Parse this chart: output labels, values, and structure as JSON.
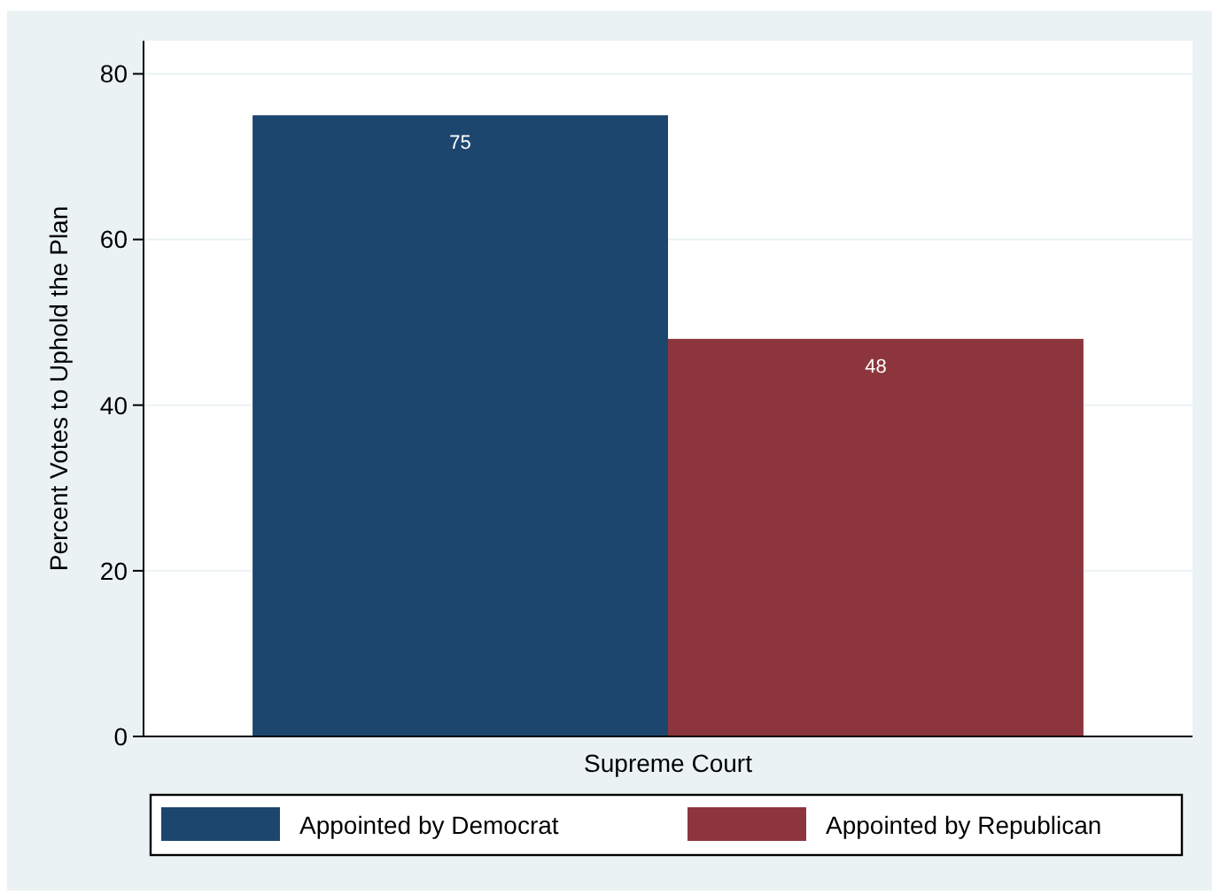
{
  "chart_data": {
    "type": "bar",
    "ylabel": "Percent Votes to Uphold the Plan",
    "categories": [
      "Supreme Court"
    ],
    "series": [
      {
        "name": "Appointed by Democrat",
        "color": "#1d466f",
        "values": [
          75
        ]
      },
      {
        "name": "Appointed by Republican",
        "color": "#8d353d",
        "values": [
          48
        ]
      }
    ],
    "ylim": [
      0,
      84
    ],
    "yticks": [
      0,
      20,
      40,
      60,
      80
    ],
    "grid": "y",
    "data_labels": true,
    "legend": "bottom"
  }
}
